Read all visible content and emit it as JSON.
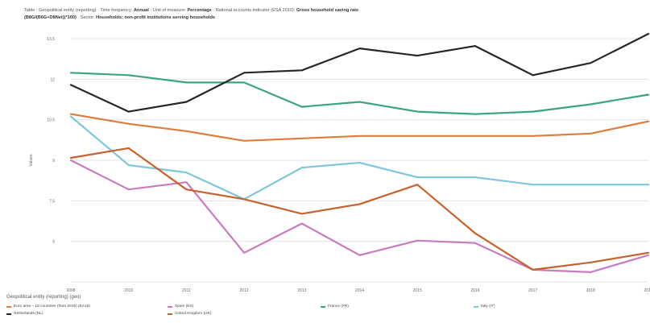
{
  "header": {
    "line1_prefix": "Table : Geopolitical entity (reporting) · Time frequency:",
    "line1_freq": "Annual",
    "line1_unit_label": "· Unit of measure:",
    "line1_unit": "Percentage",
    "line1_indicator_label": "· National accounts indicator (ESA 2010):",
    "line1_indicator": "Gross household saving rate",
    "line2_code": "(B8G/(B6G+D8Net))*100)",
    "line2_sector_label": "· Sector:",
    "line2_sector": "Households; non-profit institutions serving households"
  },
  "legend": {
    "title": "Geopolitical entity (reporting) (geo)"
  },
  "chart_data": {
    "type": "line",
    "ylabel": "Values",
    "ylim": [
      4,
      14
    ],
    "yticks": [
      "",
      "6",
      "7.5",
      "9",
      "10.5",
      "12",
      "13.5"
    ],
    "x": [
      "2008",
      "2010",
      "2011",
      "2012",
      "2013",
      "2014",
      "2015",
      "2016",
      "2017",
      "2018",
      "2019"
    ],
    "grid": true,
    "series": [
      {
        "name": "Euro area – 19 countries (from 2015) (EA19)",
        "color": "#e07b39",
        "values": [
          10.9,
          10.5,
          10.2,
          9.8,
          9.9,
          10.0,
          10.0,
          10.0,
          10.0,
          10.1,
          10.6
        ]
      },
      {
        "name": "Spain (ES)",
        "color": "#c97ac0",
        "values": [
          9.0,
          7.8,
          8.1,
          5.2,
          6.4,
          5.1,
          5.7,
          5.6,
          4.5,
          4.4,
          5.1
        ]
      },
      {
        "name": "France (FR)",
        "color": "#3aa57f",
        "values": [
          12.6,
          12.5,
          12.2,
          12.2,
          11.2,
          11.4,
          11.0,
          10.9,
          11.0,
          11.3,
          11.7
        ]
      },
      {
        "name": "Italy (IT)",
        "color": "#7fc5dc",
        "values": [
          10.8,
          8.8,
          8.5,
          7.4,
          8.7,
          8.9,
          8.3,
          8.3,
          8.0,
          8.0,
          8.0
        ]
      },
      {
        "name": "Netherlands (NL)",
        "color": "#262626",
        "values": [
          12.1,
          11.0,
          11.4,
          12.6,
          12.7,
          13.6,
          13.3,
          13.7,
          12.5,
          13.0,
          14.2
        ]
      },
      {
        "name": "United Kingdom (UK)",
        "color": "#c8622d",
        "values": [
          9.1,
          9.5,
          7.8,
          7.4,
          6.8,
          7.2,
          8.0,
          6.0,
          4.5,
          4.8,
          5.2
        ]
      }
    ]
  }
}
